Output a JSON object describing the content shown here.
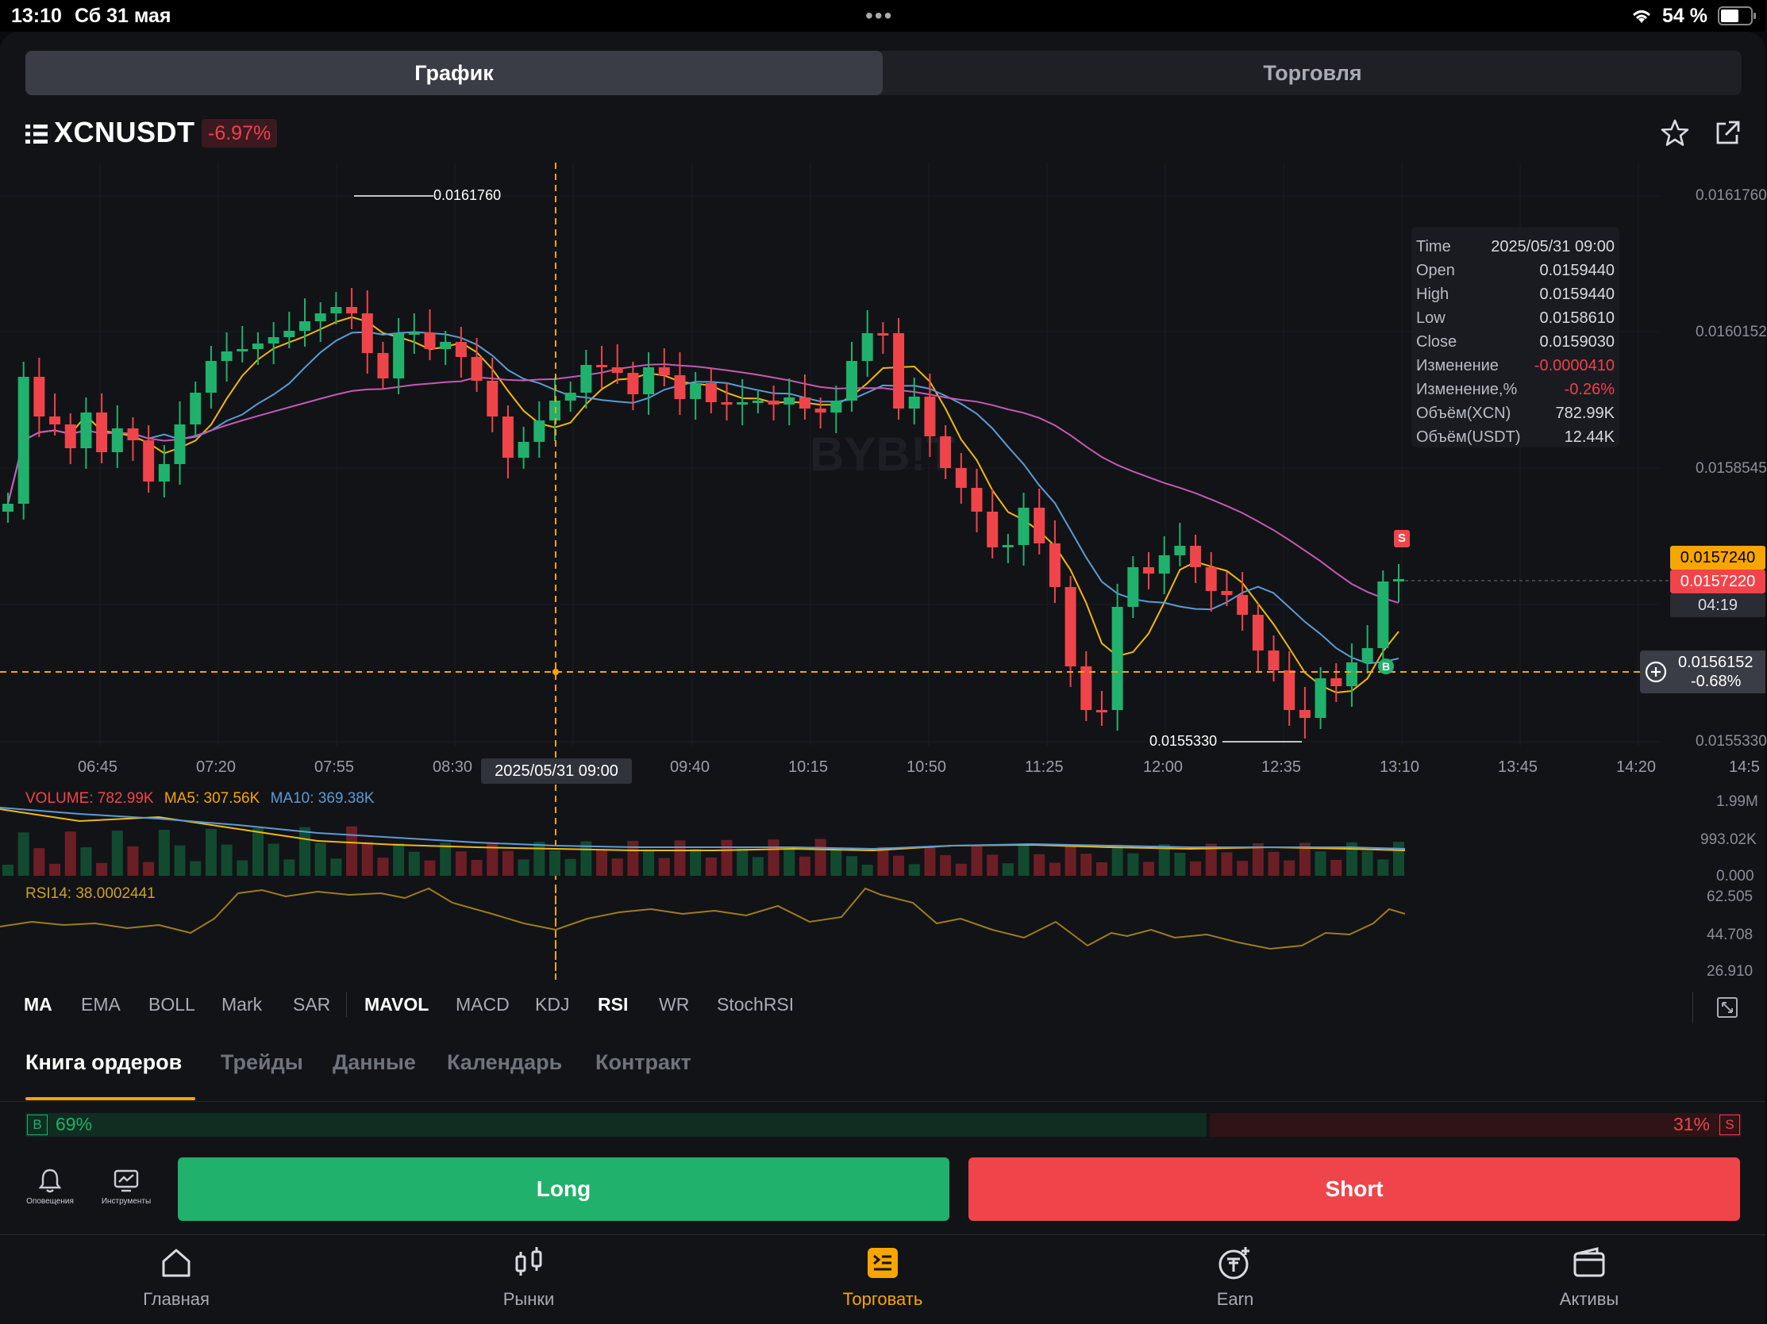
{
  "status_bar": {
    "time": "13:10",
    "date": "Сб 31 мая",
    "battery": "54 %"
  },
  "segments": [
    {
      "label": "График",
      "active": true
    },
    {
      "label": "Торговля",
      "active": false
    }
  ],
  "symbol": {
    "name": "XCNUSDT",
    "change": "-6.97%"
  },
  "chart": {
    "watermark": "BYB!T",
    "y_labels": [
      "0.0161760",
      "0.0160152",
      "0.0158545",
      "0.0155330"
    ],
    "x_labels": [
      "06:45",
      "07:20",
      "07:55",
      "08:30",
      "09:40",
      "10:15",
      "10:50",
      "11:25",
      "12:00",
      "12:35",
      "13:10",
      "13:45",
      "14:20",
      "14:5"
    ],
    "crosshair_time": "2025/05/31 09:00",
    "high_marker": "0.0161760",
    "low_marker": "0.0155330",
    "last_price": "0.0157240",
    "current_price": "0.0157220",
    "countdown": "04:19",
    "crosshair_price": "0.0156152",
    "crosshair_change": "-0.68%",
    "sell_marker": "S",
    "buy_marker": "B",
    "ohlc": [
      {
        "k": "Time",
        "v": "2025/05/31 09:00"
      },
      {
        "k": "Open",
        "v": "0.0159440"
      },
      {
        "k": "High",
        "v": "0.0159440"
      },
      {
        "k": "Low",
        "v": "0.0158610"
      },
      {
        "k": "Close",
        "v": "0.0159030"
      },
      {
        "k": "Изменение",
        "v": "-0.0000410",
        "neg": true
      },
      {
        "k": "Изменение,%",
        "v": "-0.26%",
        "neg": true
      },
      {
        "k": "Объём(XCN)",
        "v": "782.99K"
      },
      {
        "k": "Объём(USDT)",
        "v": "12.44K"
      }
    ]
  },
  "volume": {
    "label": "VOLUME: 782.99K",
    "ma5": "MA5: 307.56K",
    "ma10": "MA10: 369.38K",
    "y_labels": [
      "1.99M",
      "993.02K",
      "0.000"
    ]
  },
  "rsi": {
    "label": "RSI14: 38.0002441",
    "y_labels": [
      "62.505",
      "44.708",
      "26.910"
    ]
  },
  "indicators": [
    "MA",
    "EMA",
    "BOLL",
    "Mark",
    "SAR",
    "MAVOL",
    "MACD",
    "KDJ",
    "RSI",
    "WR",
    "StochRSI"
  ],
  "sub_tabs": [
    "Книга ордеров",
    "Трейды",
    "Данные",
    "Календарь",
    "Контракт"
  ],
  "ratio": {
    "buy_label": "B",
    "buy_pct": "69%",
    "sell_pct": "31%",
    "sell_label": "S",
    "buy_fraction": 0.69
  },
  "tools": [
    {
      "label": "Оповещения",
      "icon": "bell-icon"
    },
    {
      "label": "Инструменты",
      "icon": "chart-tools-icon"
    }
  ],
  "actions": {
    "long": "Long",
    "short": "Short"
  },
  "colors": {
    "up": "#20b26c",
    "down": "#ef454a",
    "accent": "#f7a600"
  },
  "tab_bar": [
    {
      "label": "Главная",
      "icon": "home-icon"
    },
    {
      "label": "Рынки",
      "icon": "markets-icon"
    },
    {
      "label": "Торговать",
      "icon": "trade-icon",
      "active": true
    },
    {
      "label": "Earn",
      "icon": "earn-icon"
    },
    {
      "label": "Активы",
      "icon": "wallet-icon"
    }
  ]
}
